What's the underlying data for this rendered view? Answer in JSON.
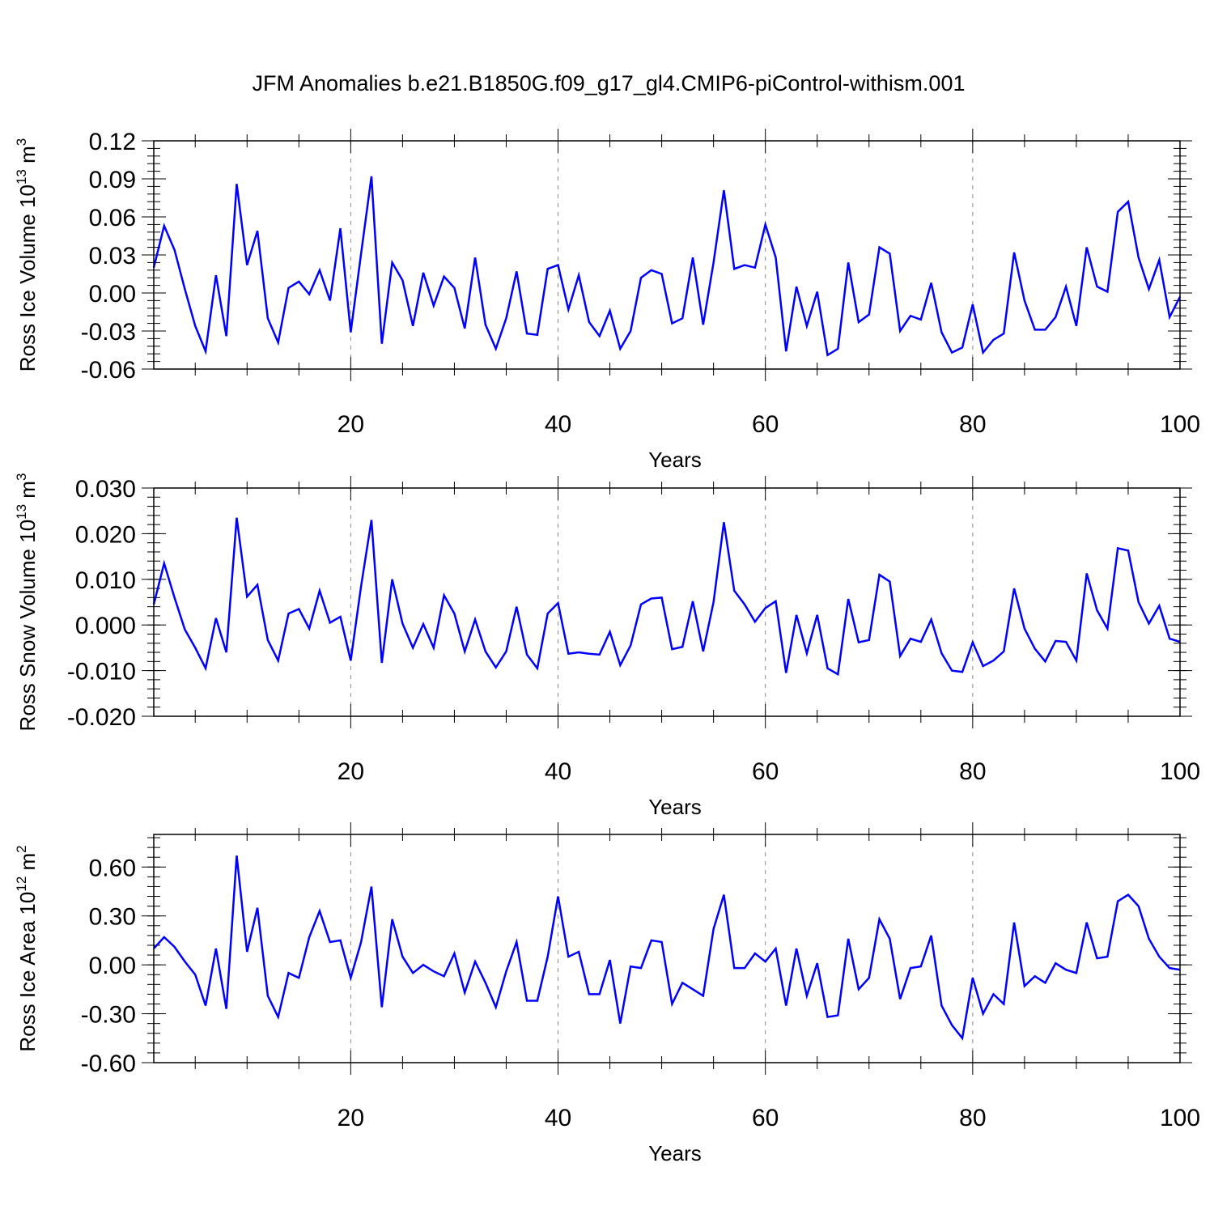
{
  "title": "JFM Anomalies b.e21.B1850G.f09_g17_gl4.CMIP6-piControl-withism.001",
  "line_color": "#0000ff",
  "chart_data": [
    {
      "type": "line",
      "ylabel": "Ross Ice Volume 10",
      "ylabel_sup": "13",
      "ylabel_unit": "m",
      "ylabel_unit_sup": "3",
      "xlabel": "Years",
      "xlim": [
        1,
        100
      ],
      "ylim": [
        -0.06,
        0.12
      ],
      "x_ticks": [
        20,
        40,
        60,
        80,
        100
      ],
      "y_ticks": [
        "-0.06",
        "-0.03",
        "0.00",
        "0.03",
        "0.06",
        "0.09",
        "0.12"
      ],
      "y_tick_values": [
        -0.06,
        -0.03,
        0.0,
        0.03,
        0.06,
        0.09,
        0.12
      ],
      "grid": "vertical dashed at x ticks",
      "x": [
        1,
        2,
        3,
        4,
        5,
        6,
        7,
        8,
        9,
        10,
        11,
        12,
        13,
        14,
        15,
        16,
        17,
        18,
        19,
        20,
        21,
        22,
        23,
        24,
        25,
        26,
        27,
        28,
        29,
        30,
        31,
        32,
        33,
        34,
        35,
        36,
        37,
        38,
        39,
        40,
        41,
        42,
        43,
        44,
        45,
        46,
        47,
        48,
        49,
        50,
        51,
        52,
        53,
        54,
        55,
        56,
        57,
        58,
        59,
        60,
        61,
        62,
        63,
        64,
        65,
        66,
        67,
        68,
        69,
        70,
        71,
        72,
        73,
        74,
        75,
        76,
        77,
        78,
        79,
        80,
        81,
        82,
        83,
        84,
        85,
        86,
        87,
        88,
        89,
        90,
        91,
        92,
        93,
        94,
        95,
        96,
        97,
        98,
        99,
        100
      ],
      "values": [
        0.02,
        0.053,
        0.034,
        0.003,
        -0.026,
        -0.046,
        0.014,
        -0.034,
        0.086,
        0.022,
        0.049,
        -0.02,
        -0.039,
        0.004,
        0.009,
        -0.001,
        0.018,
        -0.006,
        0.051,
        -0.031,
        0.031,
        0.092,
        -0.04,
        0.024,
        0.01,
        -0.026,
        0.016,
        -0.01,
        0.013,
        0.004,
        -0.028,
        0.028,
        -0.025,
        -0.044,
        -0.02,
        0.017,
        -0.032,
        -0.033,
        0.019,
        0.022,
        -0.013,
        0.014,
        -0.023,
        -0.034,
        -0.014,
        -0.044,
        -0.03,
        0.012,
        0.018,
        0.015,
        -0.024,
        -0.02,
        0.028,
        -0.025,
        0.024,
        0.081,
        0.019,
        0.022,
        0.02,
        0.054,
        0.028,
        -0.046,
        0.005,
        -0.026,
        0.001,
        -0.049,
        -0.044,
        0.024,
        -0.023,
        -0.017,
        0.036,
        0.031,
        -0.03,
        -0.018,
        -0.021,
        0.008,
        -0.031,
        -0.047,
        -0.043,
        -0.009,
        -0.047,
        -0.037,
        -0.032,
        0.032,
        -0.006,
        -0.029,
        -0.029,
        -0.019,
        0.005,
        -0.026,
        0.036,
        0.005,
        0.001,
        0.064,
        0.072,
        0.028,
        0.003,
        0.026,
        -0.019,
        -0.003
      ]
    },
    {
      "type": "line",
      "ylabel": "Ross Snow Volume 10",
      "ylabel_sup": "13",
      "ylabel_unit": "m",
      "ylabel_unit_sup": "3",
      "xlabel": "Years",
      "xlim": [
        1,
        100
      ],
      "ylim": [
        -0.02,
        0.03
      ],
      "x_ticks": [
        20,
        40,
        60,
        80,
        100
      ],
      "y_ticks": [
        "-0.020",
        "-0.010",
        "0.000",
        "0.010",
        "0.020",
        "0.030"
      ],
      "y_tick_values": [
        -0.02,
        -0.01,
        0.0,
        0.01,
        0.02,
        0.03
      ],
      "grid": "vertical dashed at x ticks",
      "x": [
        1,
        2,
        3,
        4,
        5,
        6,
        7,
        8,
        9,
        10,
        11,
        12,
        13,
        14,
        15,
        16,
        17,
        18,
        19,
        20,
        21,
        22,
        23,
        24,
        25,
        26,
        27,
        28,
        29,
        30,
        31,
        32,
        33,
        34,
        35,
        36,
        37,
        38,
        39,
        40,
        41,
        42,
        43,
        44,
        45,
        46,
        47,
        48,
        49,
        50,
        51,
        52,
        53,
        54,
        55,
        56,
        57,
        58,
        59,
        60,
        61,
        62,
        63,
        64,
        65,
        66,
        67,
        68,
        69,
        70,
        71,
        72,
        73,
        74,
        75,
        76,
        77,
        78,
        79,
        80,
        81,
        82,
        83,
        84,
        85,
        86,
        87,
        88,
        89,
        90,
        91,
        92,
        93,
        94,
        95,
        96,
        97,
        98,
        99,
        100
      ],
      "values": [
        0.0045,
        0.0135,
        0.006,
        -0.001,
        -0.005,
        -0.0095,
        0.0015,
        -0.006,
        0.0235,
        0.0062,
        0.0088,
        -0.0033,
        -0.0078,
        0.0025,
        0.0035,
        -0.0008,
        0.0075,
        0.0005,
        0.0018,
        -0.0078,
        0.0085,
        0.023,
        -0.0083,
        0.01,
        0.0003,
        -0.005,
        0.0002,
        -0.005,
        0.0065,
        0.0025,
        -0.0058,
        0.0012,
        -0.0058,
        -0.0093,
        -0.0058,
        0.004,
        -0.0065,
        -0.0095,
        0.0025,
        0.0048,
        -0.0063,
        -0.006,
        -0.0063,
        -0.0065,
        -0.0015,
        -0.0088,
        -0.0045,
        0.0045,
        0.0058,
        0.006,
        -0.0053,
        -0.0048,
        0.0052,
        -0.0058,
        0.005,
        0.0225,
        0.0075,
        0.0045,
        0.0007,
        0.0037,
        0.0052,
        -0.0105,
        0.0022,
        -0.0062,
        0.0022,
        -0.0095,
        -0.0108,
        0.0057,
        -0.0038,
        -0.0033,
        0.011,
        0.0095,
        -0.0068,
        -0.003,
        -0.0037,
        0.0012,
        -0.0062,
        -0.01,
        -0.0103,
        -0.0038,
        -0.009,
        -0.0078,
        -0.0058,
        0.008,
        -0.0008,
        -0.0052,
        -0.008,
        -0.0035,
        -0.0037,
        -0.0078,
        0.0113,
        0.0032,
        -0.0008,
        0.0168,
        0.0163,
        0.005,
        0.0003,
        0.0042,
        -0.003,
        -0.0037
      ]
    },
    {
      "type": "line",
      "ylabel": "Ross Ice Area 10",
      "ylabel_sup": "12",
      "ylabel_unit": "m",
      "ylabel_unit_sup": "2",
      "xlabel": "Years",
      "xlim": [
        1,
        100
      ],
      "ylim": [
        -0.6,
        0.8
      ],
      "x_ticks": [
        20,
        40,
        60,
        80,
        100
      ],
      "y_ticks": [
        "-0.60",
        "-0.30",
        "0.00",
        "0.30",
        "0.60"
      ],
      "y_tick_values": [
        -0.6,
        -0.3,
        0.0,
        0.3,
        0.6
      ],
      "grid": "vertical dashed at x ticks",
      "x": [
        1,
        2,
        3,
        4,
        5,
        6,
        7,
        8,
        9,
        10,
        11,
        12,
        13,
        14,
        15,
        16,
        17,
        18,
        19,
        20,
        21,
        22,
        23,
        24,
        25,
        26,
        27,
        28,
        29,
        30,
        31,
        32,
        33,
        34,
        35,
        36,
        37,
        38,
        39,
        40,
        41,
        42,
        43,
        44,
        45,
        46,
        47,
        48,
        49,
        50,
        51,
        52,
        53,
        54,
        55,
        56,
        57,
        58,
        59,
        60,
        61,
        62,
        63,
        64,
        65,
        66,
        67,
        68,
        69,
        70,
        71,
        72,
        73,
        74,
        75,
        76,
        77,
        78,
        79,
        80,
        81,
        82,
        83,
        84,
        85,
        86,
        87,
        88,
        89,
        90,
        91,
        92,
        93,
        94,
        95,
        96,
        97,
        98,
        99,
        100
      ],
      "values": [
        0.1,
        0.17,
        0.11,
        0.02,
        -0.06,
        -0.25,
        0.1,
        -0.27,
        0.67,
        0.08,
        0.35,
        -0.19,
        -0.32,
        -0.05,
        -0.08,
        0.17,
        0.33,
        0.14,
        0.15,
        -0.08,
        0.14,
        0.48,
        -0.26,
        0.28,
        0.05,
        -0.05,
        0.0,
        -0.04,
        -0.07,
        0.07,
        -0.17,
        0.02,
        -0.11,
        -0.26,
        -0.04,
        0.14,
        -0.22,
        -0.22,
        0.05,
        0.42,
        0.05,
        0.08,
        -0.18,
        -0.18,
        0.03,
        -0.36,
        -0.01,
        -0.02,
        0.15,
        0.14,
        -0.24,
        -0.11,
        -0.15,
        -0.19,
        0.22,
        0.43,
        -0.02,
        -0.02,
        0.07,
        0.02,
        0.1,
        -0.25,
        0.1,
        -0.19,
        0.01,
        -0.32,
        -0.31,
        0.16,
        -0.15,
        -0.08,
        0.28,
        0.16,
        -0.21,
        -0.02,
        -0.01,
        0.18,
        -0.25,
        -0.37,
        -0.45,
        -0.08,
        -0.3,
        -0.18,
        -0.24,
        0.26,
        -0.13,
        -0.07,
        -0.11,
        0.01,
        -0.03,
        -0.05,
        0.26,
        0.04,
        0.05,
        0.39,
        0.43,
        0.36,
        0.16,
        0.05,
        -0.02,
        -0.03
      ]
    }
  ]
}
